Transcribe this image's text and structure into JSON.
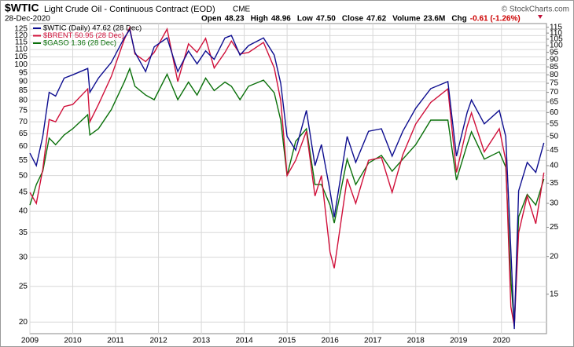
{
  "header": {
    "symbol": "$WTIC",
    "description": "Light Crude Oil - Continuous Contract (EOD)",
    "exchange": "CME",
    "date": "28-Dec-2020",
    "credit": "© StockCharts.com",
    "stats": [
      {
        "label": "Open",
        "value": "48.23"
      },
      {
        "label": "High",
        "value": "48.96"
      },
      {
        "label": "Low",
        "value": "47.50"
      },
      {
        "label": "Close",
        "value": "47.62"
      },
      {
        "label": "Volume",
        "value": "23.6M"
      },
      {
        "label": "Chg",
        "value": "-0.61 (-1.26%)",
        "color": "#cc0000"
      }
    ]
  },
  "chart_data": {
    "type": "line",
    "log_scale": true,
    "grid": true,
    "legend": "top-left",
    "x": [
      2009.0,
      2009.15,
      2009.3,
      2009.45,
      2009.6,
      2009.8,
      2010.0,
      2010.35,
      2010.4,
      2010.6,
      2010.9,
      2011.2,
      2011.33,
      2011.45,
      2011.7,
      2011.9,
      2012.2,
      2012.45,
      2012.7,
      2012.9,
      2013.1,
      2013.3,
      2013.55,
      2013.7,
      2013.9,
      2014.1,
      2014.45,
      2014.7,
      2014.85,
      2015.0,
      2015.2,
      2015.45,
      2015.65,
      2015.8,
      2016.0,
      2016.1,
      2016.4,
      2016.6,
      2016.9,
      2017.2,
      2017.45,
      2017.7,
      2018.0,
      2018.35,
      2018.75,
      2018.95,
      2019.2,
      2019.3,
      2019.6,
      2019.95,
      2020.1,
      2020.22,
      2020.3,
      2020.4,
      2020.6,
      2020.8,
      2020.99
    ],
    "xlim": [
      2009.0,
      2021.05
    ],
    "xticks": [
      2009,
      2010,
      2011,
      2012,
      2013,
      2014,
      2015,
      2016,
      2017,
      2018,
      2019,
      2020
    ],
    "ylim": [
      18.6,
      129.4
    ],
    "yticks": [
      20,
      25,
      30,
      35,
      40,
      45,
      50,
      55,
      60,
      65,
      70,
      75,
      80,
      85,
      90,
      95,
      100,
      105,
      110,
      115,
      120,
      125
    ],
    "y2lim": [
      11.1,
      118.3
    ],
    "y2ticks": [
      15,
      20,
      25,
      30,
      35,
      40,
      45,
      50,
      55,
      60,
      65,
      70,
      75,
      80,
      85,
      90,
      95,
      100,
      105,
      110,
      115
    ],
    "y3lim": [
      0.385,
      4.84
    ],
    "series": [
      {
        "name": "$WTIC (Daily) 47.62 (28 Dec)",
        "color": "#0d0d8f",
        "axis": "y2",
        "values": [
          44,
          40,
          50,
          70,
          68,
          78,
          80,
          84,
          70,
          78,
          88,
          106,
          113,
          95,
          82,
          99,
          106,
          82,
          96,
          87,
          96,
          90,
          106,
          108,
          93,
          100,
          106,
          93,
          75,
          50,
          45,
          61,
          40,
          47,
          33,
          27,
          50,
          41,
          52,
          53,
          43,
          52,
          62,
          72,
          76,
          43,
          60,
          66,
          55,
          61,
          50,
          21,
          11.5,
          33,
          41,
          38,
          47.62
        ]
      },
      {
        "name": "$BRENT 50.95 (28 Dec)",
        "color": "#d0103a",
        "axis": "y",
        "values": [
          45,
          42,
          52,
          71,
          70,
          77,
          78,
          86,
          70,
          78,
          93,
          117,
          126,
          107,
          102,
          108,
          125,
          90,
          114,
          108,
          118,
          98,
          108,
          116,
          107,
          108,
          115,
          98,
          80,
          50,
          55,
          66,
          44,
          50,
          31,
          28,
          49,
          42,
          55,
          56,
          45,
          57,
          69,
          79,
          86,
          51,
          68,
          74,
          58,
          67,
          55,
          22,
          19.5,
          35,
          44,
          37,
          50.95
        ]
      },
      {
        "name": "$GASO 1.36 (28 Dec)",
        "color": "#0a700a",
        "axis": "y3",
        "values": [
          1.1,
          1.3,
          1.45,
          1.9,
          1.8,
          1.95,
          2.05,
          2.3,
          1.95,
          2.05,
          2.4,
          3.0,
          3.35,
          2.9,
          2.7,
          2.6,
          3.2,
          2.6,
          3.0,
          2.7,
          3.1,
          2.8,
          3.0,
          2.9,
          2.6,
          2.9,
          3.05,
          2.75,
          2.2,
          1.4,
          1.85,
          2.05,
          1.3,
          1.3,
          1.1,
          0.95,
          1.6,
          1.3,
          1.55,
          1.65,
          1.45,
          1.6,
          1.8,
          2.2,
          2.2,
          1.35,
          1.8,
          2.0,
          1.6,
          1.7,
          1.5,
          0.6,
          0.41,
          1.0,
          1.2,
          1.1,
          1.36
        ]
      }
    ]
  }
}
